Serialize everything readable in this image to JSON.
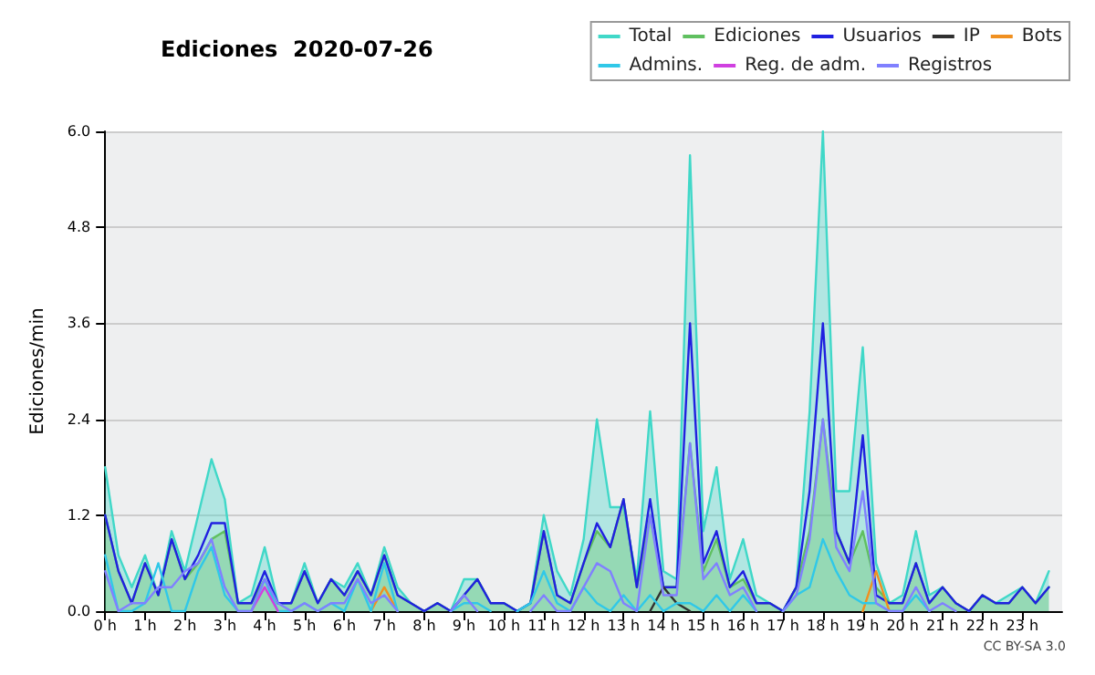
{
  "chart_data": {
    "type": "line",
    "title": "Ediciones  2020-07-26",
    "ylabel": "Ediciones/min",
    "annotations": [
      "CC BY-SA 3.0"
    ],
    "x": [
      0,
      0.333,
      0.667,
      1,
      1.333,
      1.667,
      2,
      2.333,
      2.667,
      3,
      3.333,
      3.667,
      4,
      4.333,
      4.667,
      5,
      5.333,
      5.667,
      6,
      6.333,
      6.667,
      7,
      7.333,
      7.667,
      8,
      8.333,
      8.667,
      9,
      9.333,
      9.667,
      10,
      10.333,
      10.667,
      11,
      11.333,
      11.667,
      12,
      12.333,
      12.667,
      13,
      13.333,
      13.667,
      14,
      14.333,
      14.667,
      15,
      15.333,
      15.667,
      16,
      16.333,
      16.667,
      17,
      17.333,
      17.667,
      18,
      18.333,
      18.667,
      19,
      19.333,
      19.667,
      20,
      20.333,
      20.667,
      21,
      21.333,
      21.667,
      22,
      22.333,
      22.667,
      23,
      23.333,
      23.667
    ],
    "series": [
      {
        "name": "Total",
        "type": "area",
        "color": "#40d8c8",
        "values": [
          1.8,
          0.7,
          0.3,
          0.7,
          0.2,
          1.0,
          0.5,
          1.2,
          1.9,
          1.4,
          0.1,
          0.2,
          0.8,
          0.1,
          0.1,
          0.6,
          0.1,
          0.4,
          0.3,
          0.6,
          0.2,
          0.8,
          0.3,
          0.1,
          0,
          0.1,
          0,
          0.4,
          0.4,
          0.1,
          0.1,
          0,
          0.1,
          1.2,
          0.5,
          0.2,
          0.9,
          2.4,
          1.3,
          1.3,
          0.4,
          2.5,
          0.5,
          0.4,
          5.7,
          1.0,
          1.8,
          0.4,
          0.9,
          0.2,
          0.1,
          0,
          0.3,
          2.5,
          6.0,
          1.5,
          1.5,
          3.3,
          0.6,
          0.1,
          0.2,
          1.0,
          0.2,
          0.3,
          0.1,
          0,
          0.2,
          0.1,
          0.2,
          0.3,
          0.1,
          0.5
        ]
      },
      {
        "name": "Ediciones",
        "type": "area",
        "color": "#60c060",
        "values": [
          1.2,
          0.5,
          0.1,
          0.6,
          0.2,
          0.9,
          0.4,
          0.6,
          0.9,
          1.0,
          0.1,
          0.1,
          0.4,
          0.1,
          0.1,
          0.5,
          0.1,
          0.4,
          0.2,
          0.5,
          0.2,
          0.7,
          0.2,
          0.1,
          0,
          0.1,
          0,
          0.2,
          0.4,
          0.1,
          0.1,
          0,
          0.1,
          1.0,
          0.2,
          0.1,
          0.6,
          1.0,
          0.8,
          1.4,
          0.3,
          1.2,
          0.3,
          0.3,
          2.1,
          0.5,
          0.9,
          0.3,
          0.4,
          0.1,
          0.1,
          0,
          0.3,
          1.0,
          2.4,
          1.0,
          0.6,
          1.0,
          0.3,
          0.1,
          0.1,
          0.6,
          0.1,
          0.3,
          0.1,
          0,
          0.2,
          0.1,
          0.1,
          0.3,
          0.1,
          0.3
        ]
      },
      {
        "name": "Usuarios",
        "color": "#2020e0",
        "values": [
          1.2,
          0.5,
          0.1,
          0.6,
          0.2,
          0.9,
          0.4,
          0.7,
          1.1,
          1.1,
          0.1,
          0.1,
          0.5,
          0.1,
          0.1,
          0.5,
          0.1,
          0.4,
          0.2,
          0.5,
          0.2,
          0.7,
          0.2,
          0.1,
          0,
          0.1,
          0,
          0.2,
          0.4,
          0.1,
          0.1,
          0,
          0.1,
          1.0,
          0.2,
          0.1,
          0.6,
          1.1,
          0.8,
          1.4,
          0.3,
          1.4,
          0.3,
          0.3,
          3.6,
          0.6,
          1.0,
          0.3,
          0.5,
          0.1,
          0.1,
          0,
          0.3,
          1.5,
          3.6,
          1.0,
          0.6,
          2.2,
          0.2,
          0.1,
          0.1,
          0.6,
          0.1,
          0.3,
          0.1,
          0,
          0.2,
          0.1,
          0.1,
          0.3,
          0.1,
          0.3
        ]
      },
      {
        "name": "IP",
        "color": "#303030",
        "values": [
          null,
          null,
          null,
          null,
          null,
          null,
          null,
          null,
          null,
          null,
          null,
          null,
          null,
          null,
          null,
          null,
          null,
          null,
          null,
          null,
          null,
          null,
          null,
          null,
          null,
          null,
          null,
          null,
          null,
          null,
          null,
          null,
          null,
          null,
          null,
          null,
          null,
          null,
          null,
          null,
          null,
          0,
          0.3,
          0.1,
          0,
          null,
          null,
          null,
          null,
          null,
          null,
          null,
          null,
          null,
          null,
          null,
          null,
          null,
          null,
          null,
          null,
          null,
          null,
          null,
          null,
          null,
          null,
          null,
          null,
          null,
          null,
          null
        ]
      },
      {
        "name": "Bots",
        "color": "#f09020",
        "values": [
          null,
          null,
          null,
          null,
          null,
          null,
          null,
          null,
          null,
          null,
          null,
          null,
          null,
          null,
          null,
          null,
          null,
          null,
          null,
          null,
          0,
          0.3,
          0,
          null,
          null,
          null,
          null,
          null,
          null,
          null,
          null,
          null,
          null,
          null,
          null,
          null,
          null,
          null,
          null,
          null,
          null,
          null,
          null,
          null,
          null,
          null,
          null,
          null,
          null,
          null,
          null,
          null,
          null,
          null,
          null,
          null,
          null,
          0,
          0.5,
          0,
          null,
          null,
          null,
          null,
          null,
          null,
          null,
          null,
          null,
          null,
          null,
          null
        ]
      },
      {
        "name": "Admins.",
        "color": "#30c8e8",
        "values": [
          0.7,
          0,
          0,
          0.1,
          0.6,
          0,
          0,
          0.5,
          0.8,
          0.2,
          0,
          0,
          0.4,
          0,
          0,
          0.1,
          0,
          0.1,
          0,
          0.4,
          0,
          0.6,
          0,
          null,
          null,
          null,
          0,
          0.1,
          0.1,
          0,
          null,
          0,
          0.1,
          0.5,
          0.1,
          0,
          0.3,
          0.1,
          0,
          0.2,
          0,
          0.2,
          0,
          0.1,
          0.1,
          0,
          0.2,
          0,
          0.2,
          0,
          null,
          0,
          0.2,
          0.3,
          0.9,
          0.5,
          0.2,
          0.1,
          0.1,
          0,
          0,
          0.2,
          0,
          null,
          null,
          null,
          null,
          null,
          null,
          null,
          null,
          null
        ]
      },
      {
        "name": "Reg. de adm.",
        "color": "#d040e0",
        "values": [
          null,
          null,
          null,
          null,
          null,
          null,
          null,
          null,
          null,
          null,
          null,
          0,
          0.3,
          0,
          null,
          null,
          null,
          null,
          null,
          null,
          null,
          null,
          null,
          null,
          null,
          null,
          null,
          null,
          null,
          null,
          null,
          null,
          null,
          null,
          null,
          null,
          null,
          null,
          null,
          null,
          null,
          null,
          null,
          null,
          null,
          null,
          null,
          null,
          null,
          null,
          null,
          null,
          null,
          null,
          null,
          null,
          null,
          null,
          null,
          null,
          null,
          null,
          null,
          null,
          null,
          null,
          null,
          null,
          null,
          null,
          null,
          null
        ]
      },
      {
        "name": "Registros",
        "color": "#8080ff",
        "values": [
          0.5,
          0,
          0.1,
          0.1,
          0.3,
          0.3,
          0.5,
          0.6,
          0.9,
          0.3,
          0,
          0,
          0.4,
          0.1,
          0,
          0.1,
          0,
          0.1,
          0.1,
          0.4,
          0.1,
          0.2,
          0,
          null,
          null,
          null,
          0,
          0.2,
          0,
          null,
          null,
          null,
          0,
          0.2,
          0,
          0,
          0.3,
          0.6,
          0.5,
          0.1,
          0,
          1.2,
          0.2,
          0.2,
          2.1,
          0.4,
          0.6,
          0.2,
          0.3,
          0,
          null,
          0,
          0.2,
          0.9,
          2.4,
          0.8,
          0.5,
          1.5,
          0.1,
          0,
          0,
          0.3,
          0,
          0.1,
          0,
          null,
          null,
          null,
          null,
          null,
          null,
          null
        ]
      }
    ],
    "xlim": [
      0,
      24
    ],
    "xticks": [
      {
        "value": 0,
        "label": "0 h"
      },
      {
        "value": 1,
        "label": "1 h"
      },
      {
        "value": 2,
        "label": "2 h"
      },
      {
        "value": 3,
        "label": "3 h"
      },
      {
        "value": 4,
        "label": "4 h"
      },
      {
        "value": 5,
        "label": "5 h"
      },
      {
        "value": 6,
        "label": "6 h"
      },
      {
        "value": 7,
        "label": "7 h"
      },
      {
        "value": 8,
        "label": "8 h"
      },
      {
        "value": 9,
        "label": "9 h"
      },
      {
        "value": 10,
        "label": "10 h"
      },
      {
        "value": 11,
        "label": "11 h"
      },
      {
        "value": 12,
        "label": "12 h"
      },
      {
        "value": 13,
        "label": "13 h"
      },
      {
        "value": 14,
        "label": "14 h"
      },
      {
        "value": 15,
        "label": "15 h"
      },
      {
        "value": 16,
        "label": "16 h"
      },
      {
        "value": 17,
        "label": "17 h"
      },
      {
        "value": 18,
        "label": "18 h"
      },
      {
        "value": 19,
        "label": "19 h"
      },
      {
        "value": 20,
        "label": "20 h"
      },
      {
        "value": 21,
        "label": "21 h"
      },
      {
        "value": 22,
        "label": "22 h"
      },
      {
        "value": 23,
        "label": "23 h"
      }
    ],
    "ylim": [
      0,
      6
    ],
    "yticks": [
      {
        "value": 0,
        "label": "0.0"
      },
      {
        "value": 1.2,
        "label": "1.2"
      },
      {
        "value": 2.4,
        "label": "2.4"
      },
      {
        "value": 3.6,
        "label": "3.6"
      },
      {
        "value": 4.8,
        "label": "4.8"
      },
      {
        "value": 6,
        "label": "6.0"
      }
    ],
    "grid": "y",
    "legend": "top right",
    "marker": "none",
    "line_style": "solid"
  }
}
